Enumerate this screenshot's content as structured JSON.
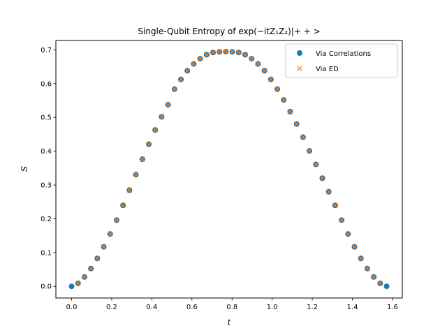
{
  "chart_data": {
    "type": "scatter",
    "title": "Single-Qubit Entropy of exp(−itZ₁Z₂)|+ + >",
    "xlabel": "t",
    "ylabel": "S",
    "xlim": [
      -0.0785,
      1.649
    ],
    "ylim": [
      -0.0347,
      0.7278
    ],
    "xticks": [
      0.0,
      0.2,
      0.4,
      0.6,
      0.8,
      1.0,
      1.2,
      1.4,
      1.6
    ],
    "xtick_labels": [
      "0.0",
      "0.2",
      "0.4",
      "0.6",
      "0.8",
      "1.0",
      "1.2",
      "1.4",
      "1.6"
    ],
    "yticks": [
      0.0,
      0.1,
      0.2,
      0.3,
      0.4,
      0.5,
      0.6,
      0.7
    ],
    "ytick_labels": [
      "0.0",
      "0.1",
      "0.2",
      "0.3",
      "0.4",
      "0.5",
      "0.6",
      "0.7"
    ],
    "grid": false,
    "legend_position": "top-right",
    "series": [
      {
        "name": "Via Correlations",
        "marker": "circle",
        "color": "#1f77b4",
        "x": [
          0.0,
          0.0321,
          0.0641,
          0.0962,
          0.1282,
          0.1603,
          0.1923,
          0.2244,
          0.2565,
          0.2885,
          0.3206,
          0.3526,
          0.3847,
          0.4167,
          0.4488,
          0.4808,
          0.5129,
          0.545,
          0.577,
          0.6091,
          0.6411,
          0.6732,
          0.7052,
          0.7373,
          0.7693,
          0.8014,
          0.8335,
          0.8655,
          0.8976,
          0.9296,
          0.9617,
          0.9937,
          1.0258,
          1.0578,
          1.0899,
          1.1219,
          1.154,
          1.1861,
          1.2181,
          1.2502,
          1.2822,
          1.3143,
          1.3463,
          1.3784,
          1.4104,
          1.4425,
          1.4746,
          1.5066,
          1.5387,
          1.5708
        ],
        "y": [
          0.0,
          0.0087,
          0.0276,
          0.0526,
          0.0825,
          0.1168,
          0.1548,
          0.1959,
          0.2395,
          0.2847,
          0.3306,
          0.3763,
          0.4207,
          0.4629,
          0.5018,
          0.5375,
          0.5837,
          0.6125,
          0.6382,
          0.6583,
          0.6739,
          0.6857,
          0.6922,
          0.6943,
          0.6948,
          0.6943,
          0.6922,
          0.6857,
          0.6739,
          0.6583,
          0.6382,
          0.6125,
          0.5837,
          0.5519,
          0.5173,
          0.4804,
          0.4415,
          0.401,
          0.3609,
          0.3202,
          0.2798,
          0.2395,
          0.1959,
          0.1548,
          0.1168,
          0.0825,
          0.0526,
          0.0276,
          0.0087,
          0.0
        ]
      },
      {
        "name": "Via ED",
        "marker": "x",
        "color": "#ff7f0e",
        "x": [
          0.0321,
          0.0641,
          0.0962,
          0.1282,
          0.1603,
          0.1923,
          0.2244,
          0.2565,
          0.2885,
          0.3206,
          0.3526,
          0.3847,
          0.4167,
          0.4488,
          0.4808,
          0.5129,
          0.545,
          0.577,
          0.6091,
          0.6411,
          0.6732,
          0.7052,
          0.7373,
          0.7693,
          0.8014,
          0.8335,
          0.8655,
          0.8976,
          0.9296,
          0.9617,
          0.9937,
          1.0258,
          1.0578,
          1.0899,
          1.1219,
          1.154,
          1.1861,
          1.2181,
          1.2502,
          1.2822,
          1.3143,
          1.3463,
          1.3784,
          1.4104,
          1.4425,
          1.4746,
          1.5066,
          1.5387
        ],
        "y": [
          0.0087,
          0.0276,
          0.0526,
          0.0825,
          0.1168,
          0.1548,
          0.1959,
          0.2395,
          0.2847,
          0.3306,
          0.3763,
          0.4207,
          0.4629,
          0.5018,
          0.5375,
          0.5837,
          0.6125,
          0.6382,
          0.6583,
          0.6739,
          0.6857,
          0.6922,
          0.6943,
          0.6948,
          0.6943,
          0.6922,
          0.6857,
          0.6739,
          0.6583,
          0.6382,
          0.6125,
          0.5837,
          0.5519,
          0.5173,
          0.4804,
          0.4415,
          0.401,
          0.3609,
          0.3202,
          0.2798,
          0.2395,
          0.1959,
          0.1548,
          0.1168,
          0.0825,
          0.0526,
          0.0276,
          0.0087
        ]
      }
    ]
  }
}
